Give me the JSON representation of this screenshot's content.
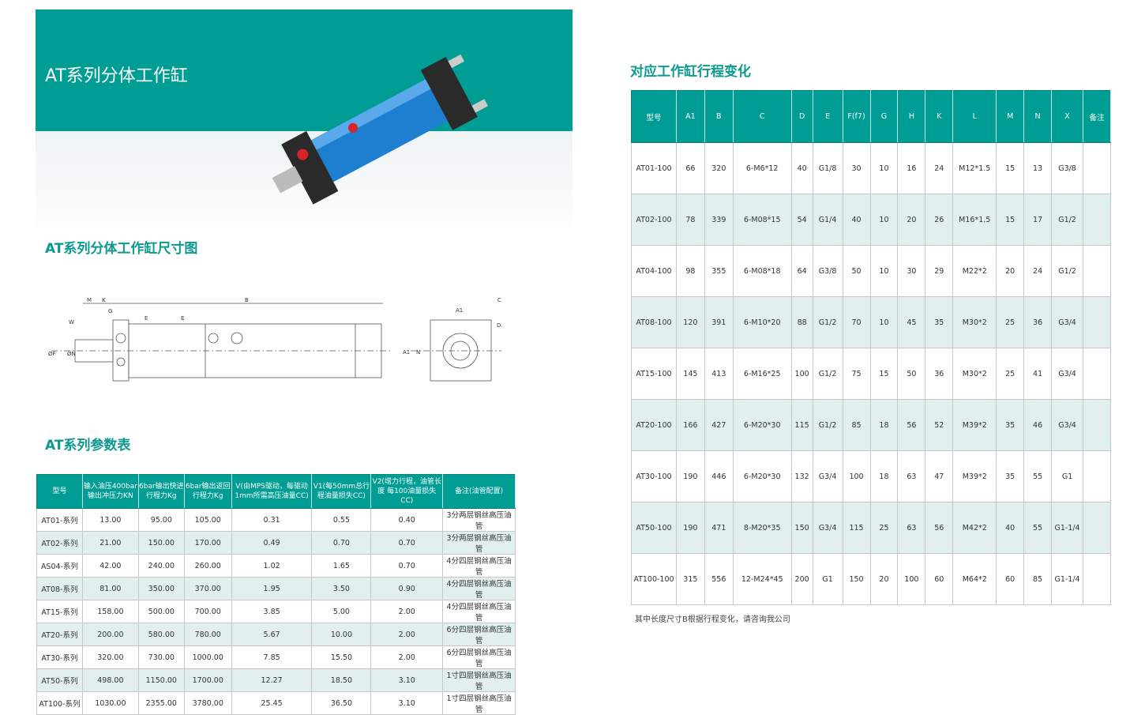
{
  "banner": {
    "title": "AT系列分体工作缸"
  },
  "sections": {
    "dimension_title": "AT系列分体工作缸尺寸图",
    "param_title": "AT系列参数表",
    "stroke_title": "对应工作缸行程变化"
  },
  "colors": {
    "accent": "#009d94",
    "alt_row": "#e1f0ef"
  },
  "diagram_labels": {
    "M": "M",
    "K": "K",
    "G": "G",
    "B": "B",
    "W": "W",
    "E1": "E",
    "E2": "E",
    "F": "ØF",
    "N": "ØN",
    "A1": "A1",
    "A1v": "A1",
    "C": "C",
    "D": "D",
    "Nv": "N"
  },
  "param_table": {
    "headers": [
      "型号",
      "输入油压400bar 输出冲压力KN",
      "6bar输出快进 行程力Kg",
      "6bar输出返回 行程力Kg",
      "V(由MPS驱动，每驱动 1mm所需高压油量CC)",
      "V1(每50mm总行 程油量损失CC)",
      "V2(增力行程，油管长度 每100油量损失CC)",
      "备注(油管配置)"
    ],
    "rows": [
      [
        "AT01-系列",
        "13.00",
        "95.00",
        "105.00",
        "0.31",
        "0.55",
        "0.40",
        "3分两层钢丝高压油管"
      ],
      [
        "AT02-系列",
        "21.00",
        "150.00",
        "170.00",
        "0.49",
        "0.70",
        "0.70",
        "3分两层钢丝高压油管"
      ],
      [
        "AS04-系列",
        "42.00",
        "240.00",
        "260.00",
        "1.02",
        "1.65",
        "0.70",
        "4分四层钢丝高压油管"
      ],
      [
        "AT08-系列",
        "81.00",
        "350.00",
        "370.00",
        "1.95",
        "3.50",
        "0.90",
        "4分四层钢丝高压油管"
      ],
      [
        "AT15-系列",
        "158.00",
        "500.00",
        "700.00",
        "3.85",
        "5.00",
        "2.00",
        "4分四层钢丝高压油管"
      ],
      [
        "AT20-系列",
        "200.00",
        "580.00",
        "780.00",
        "5.67",
        "10.00",
        "2.00",
        "6分四层钢丝高压油管"
      ],
      [
        "AT30-系列",
        "320.00",
        "730.00",
        "1000.00",
        "7.85",
        "15.50",
        "2.00",
        "6分四层钢丝高压油管"
      ],
      [
        "AT50-系列",
        "498.00",
        "1150.00",
        "1700.00",
        "12.27",
        "18.50",
        "3.10",
        "1寸四层钢丝高压油管"
      ],
      [
        "AT100-系列",
        "1030.00",
        "2355.00",
        "3780.00",
        "25.45",
        "36.50",
        "3.10",
        "1寸四层钢丝高压油管"
      ]
    ]
  },
  "stroke_table": {
    "headers": [
      "型号",
      "A1",
      "B",
      "C",
      "D",
      "E",
      "F(f7)",
      "G",
      "H",
      "K",
      "L",
      "M",
      "N",
      "X",
      "备注"
    ],
    "rows": [
      [
        "AT01-100",
        "66",
        "320",
        "6-M6*12",
        "40",
        "G1/8",
        "30",
        "10",
        "16",
        "24",
        "M12*1.5",
        "15",
        "13",
        "G3/8",
        ""
      ],
      [
        "AT02-100",
        "78",
        "339",
        "6-M08*15",
        "54",
        "G1/4",
        "40",
        "10",
        "20",
        "26",
        "M16*1.5",
        "15",
        "17",
        "G1/2",
        ""
      ],
      [
        "AT04-100",
        "98",
        "355",
        "6-M08*18",
        "64",
        "G3/8",
        "50",
        "10",
        "30",
        "29",
        "M22*2",
        "20",
        "24",
        "G1/2",
        ""
      ],
      [
        "AT08-100",
        "120",
        "391",
        "6-M10*20",
        "88",
        "G1/2",
        "70",
        "10",
        "45",
        "35",
        "M30*2",
        "25",
        "36",
        "G3/4",
        ""
      ],
      [
        "AT15-100",
        "145",
        "413",
        "6-M16*25",
        "100",
        "G1/2",
        "75",
        "15",
        "50",
        "36",
        "M30*2",
        "25",
        "41",
        "G3/4",
        ""
      ],
      [
        "AT20-100",
        "166",
        "427",
        "6-M20*30",
        "115",
        "G1/2",
        "85",
        "18",
        "56",
        "52",
        "M39*2",
        "35",
        "46",
        "G3/4",
        ""
      ],
      [
        "AT30-100",
        "190",
        "446",
        "6-M20*30",
        "132",
        "G3/4",
        "100",
        "18",
        "63",
        "47",
        "M39*2",
        "35",
        "55",
        "G1",
        ""
      ],
      [
        "AT50-100",
        "190",
        "471",
        "8-M20*35",
        "150",
        "G3/4",
        "115",
        "25",
        "63",
        "56",
        "M42*2",
        "40",
        "55",
        "G1-1/4",
        ""
      ],
      [
        "AT100-100",
        "315",
        "556",
        "12-M24*45",
        "200",
        "G1",
        "150",
        "20",
        "100",
        "60",
        "M64*2",
        "60",
        "85",
        "G1-1/4",
        ""
      ]
    ]
  },
  "note": "其中长度尺寸B根据行程变化，请咨询我公司"
}
